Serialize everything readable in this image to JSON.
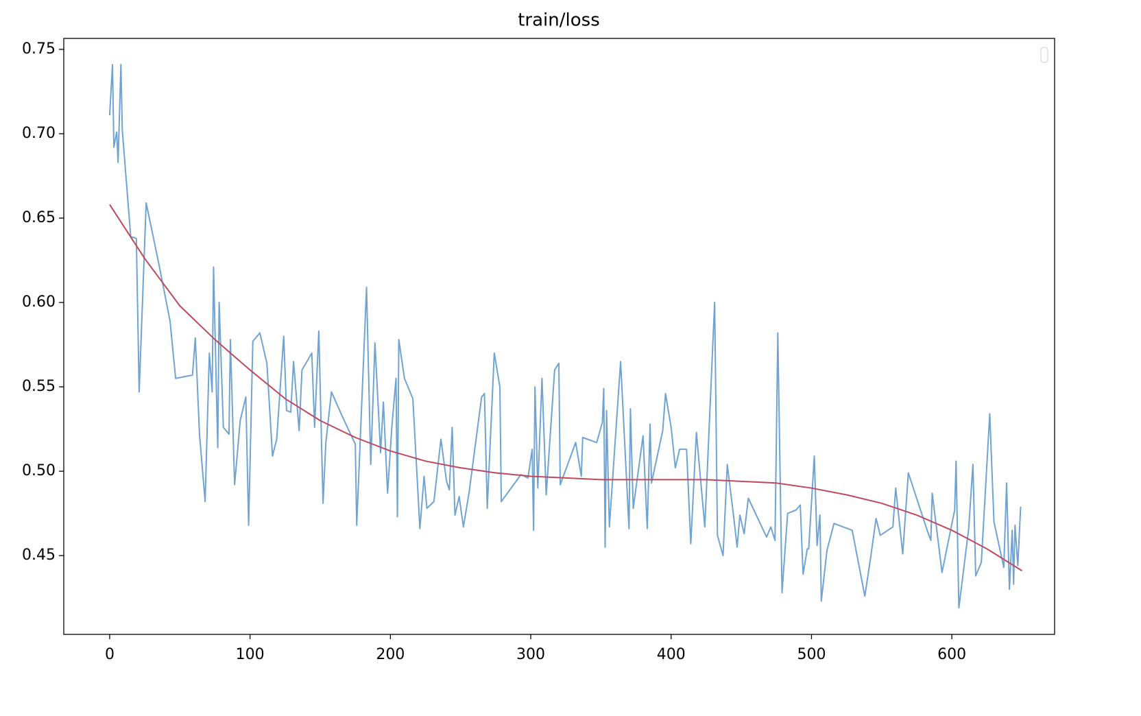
{
  "chart_data": {
    "type": "line",
    "title": "train/loss",
    "xlim": [
      -32.7,
      673.2
    ],
    "ylim": [
      0.4033,
      0.7565
    ],
    "xticks": [
      0,
      100,
      200,
      300,
      400,
      500,
      600
    ],
    "yticks": [
      {
        "value": 0.45,
        "label": "0.45"
      },
      {
        "value": 0.5,
        "label": "0.50"
      },
      {
        "value": 0.55,
        "label": "0.55"
      },
      {
        "value": 0.6,
        "label": "0.60"
      },
      {
        "value": 0.65,
        "label": "0.65"
      },
      {
        "value": 0.7,
        "label": "0.70"
      },
      {
        "value": 0.75,
        "label": "0.75"
      }
    ],
    "grid": false,
    "legend": "upper right",
    "series": [
      {
        "color": "#6fa3d4",
        "x": [
          0,
          2,
          3,
          5,
          6,
          8,
          9,
          15,
          19,
          21,
          26,
          35,
          43,
          47,
          59,
          61,
          64,
          68,
          71,
          73,
          74,
          77,
          78,
          81,
          85,
          86,
          89,
          93,
          97,
          99,
          102,
          107,
          112,
          116,
          119,
          124,
          126,
          129,
          131,
          135,
          137,
          144,
          146,
          149,
          152,
          154,
          158,
          166,
          175,
          176,
          183,
          186,
          189,
          193,
          195,
          198,
          201,
          204,
          205,
          206,
          210,
          216,
          221,
          224,
          226,
          231,
          236,
          240,
          242,
          244,
          246,
          249,
          252,
          256,
          265,
          267,
          269,
          274,
          278,
          279,
          293,
          298,
          301,
          302,
          303,
          305,
          308,
          311,
          317,
          320,
          321,
          332,
          336,
          337,
          347,
          351,
          352,
          353,
          354,
          356,
          364,
          370,
          371,
          373,
          380,
          383,
          385,
          386,
          394,
          396,
          400,
          403,
          406,
          411,
          414,
          418,
          424,
          431,
          433,
          437,
          440,
          445,
          447,
          449,
          452,
          455,
          468,
          471,
          474,
          476,
          479,
          483,
          489,
          492,
          494,
          497,
          498,
          502,
          504,
          506,
          507,
          511,
          516,
          529,
          538,
          542,
          546,
          549,
          558,
          560,
          565,
          569,
          582,
          585,
          586,
          593,
          602,
          603,
          605,
          612,
          615,
          617,
          621,
          627,
          630,
          637,
          639,
          641,
          643,
          644,
          645,
          647,
          649
        ],
        "values": [
          0.711,
          0.741,
          0.692,
          0.701,
          0.683,
          0.741,
          0.702,
          0.639,
          0.638,
          0.547,
          0.659,
          0.623,
          0.589,
          0.555,
          0.557,
          0.579,
          0.522,
          0.482,
          0.57,
          0.547,
          0.621,
          0.514,
          0.6,
          0.526,
          0.522,
          0.578,
          0.492,
          0.53,
          0.544,
          0.468,
          0.577,
          0.582,
          0.564,
          0.509,
          0.519,
          0.58,
          0.536,
          0.535,
          0.565,
          0.524,
          0.56,
          0.57,
          0.526,
          0.583,
          0.481,
          0.517,
          0.547,
          0.532,
          0.516,
          0.468,
          0.609,
          0.504,
          0.576,
          0.511,
          0.541,
          0.487,
          0.526,
          0.555,
          0.473,
          0.578,
          0.555,
          0.543,
          0.466,
          0.497,
          0.478,
          0.482,
          0.519,
          0.494,
          0.489,
          0.526,
          0.474,
          0.485,
          0.467,
          0.487,
          0.544,
          0.546,
          0.478,
          0.57,
          0.55,
          0.482,
          0.498,
          0.496,
          0.513,
          0.465,
          0.55,
          0.49,
          0.555,
          0.486,
          0.56,
          0.564,
          0.492,
          0.517,
          0.497,
          0.52,
          0.517,
          0.529,
          0.549,
          0.455,
          0.536,
          0.467,
          0.565,
          0.466,
          0.537,
          0.478,
          0.521,
          0.466,
          0.528,
          0.493,
          0.524,
          0.546,
          0.526,
          0.502,
          0.513,
          0.513,
          0.457,
          0.523,
          0.467,
          0.6,
          0.462,
          0.45,
          0.504,
          0.47,
          0.455,
          0.474,
          0.463,
          0.484,
          0.461,
          0.467,
          0.459,
          0.582,
          0.428,
          0.475,
          0.477,
          0.48,
          0.439,
          0.454,
          0.454,
          0.509,
          0.456,
          0.474,
          0.423,
          0.453,
          0.469,
          0.465,
          0.426,
          0.448,
          0.472,
          0.462,
          0.467,
          0.49,
          0.451,
          0.499,
          0.466,
          0.459,
          0.487,
          0.44,
          0.477,
          0.506,
          0.419,
          0.466,
          0.504,
          0.438,
          0.446,
          0.534,
          0.47,
          0.443,
          0.493,
          0.43,
          0.465,
          0.433,
          0.468,
          0.444,
          0.479
        ]
      },
      {
        "color": "#c0485a",
        "x": [
          0,
          25,
          50,
          75,
          100,
          125,
          150,
          175,
          200,
          225,
          250,
          275,
          300,
          325,
          350,
          375,
          400,
          425,
          450,
          475,
          500,
          525,
          550,
          575,
          600,
          625,
          650
        ],
        "values": [
          0.658,
          0.626,
          0.598,
          0.578,
          0.56,
          0.543,
          0.53,
          0.52,
          0.512,
          0.506,
          0.502,
          0.499,
          0.497,
          0.496,
          0.495,
          0.495,
          0.495,
          0.495,
          0.494,
          0.493,
          0.49,
          0.486,
          0.481,
          0.474,
          0.465,
          0.454,
          0.441
        ]
      }
    ]
  }
}
